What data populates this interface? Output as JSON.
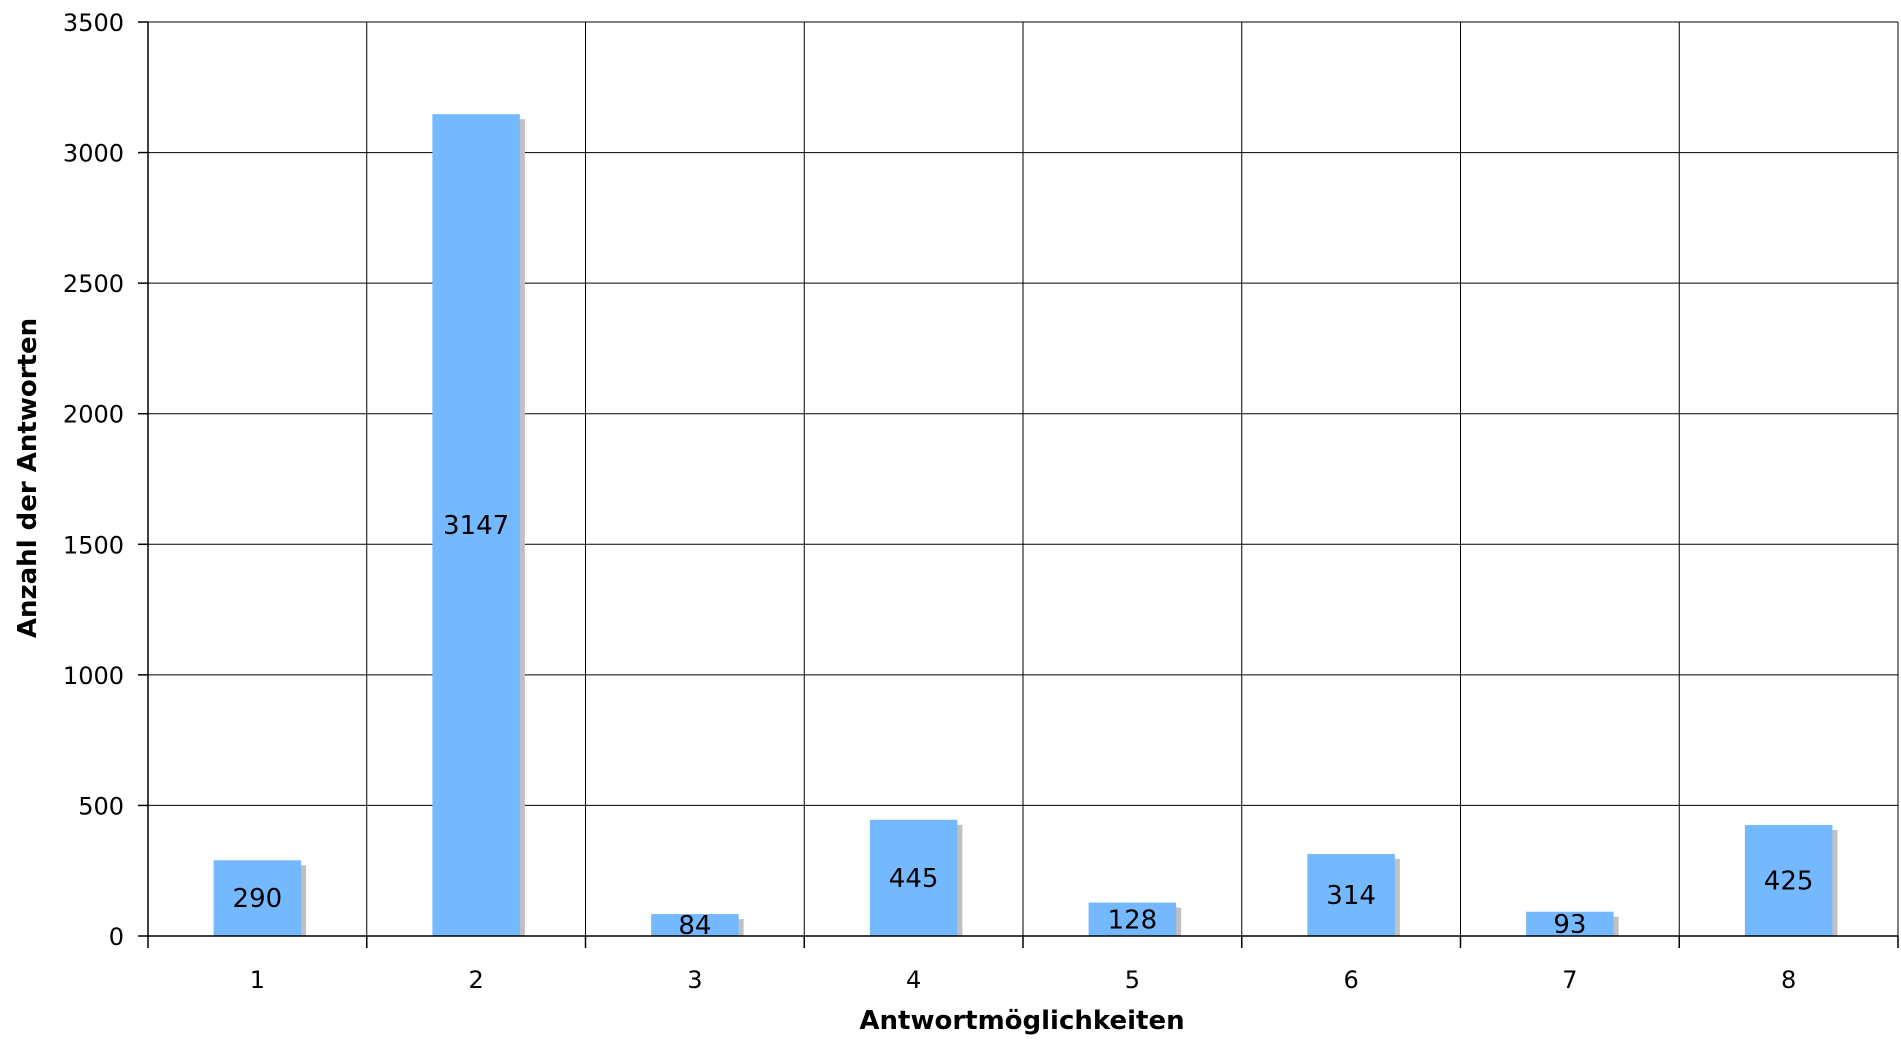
{
  "chart_data": {
    "type": "bar",
    "categories": [
      "1",
      "2",
      "3",
      "4",
      "5",
      "6",
      "7",
      "8"
    ],
    "values": [
      290,
      3147,
      84,
      445,
      128,
      314,
      93,
      425
    ],
    "data_labels": [
      "290",
      "3147",
      "84",
      "445",
      "128",
      "314",
      "93",
      "425"
    ],
    "xlabel": "Antwortmöglichkeiten",
    "ylabel": "Anzahl der Antworten",
    "ylim": [
      0,
      3500
    ],
    "yticks": [
      "0",
      "500",
      "1000",
      "1500",
      "2000",
      "2500",
      "3000",
      "3500"
    ],
    "grid": true,
    "legend": "none",
    "colors": {
      "bar": "#74b9ff",
      "shadow": "#c0c0c0",
      "grid": "#000000"
    }
  }
}
